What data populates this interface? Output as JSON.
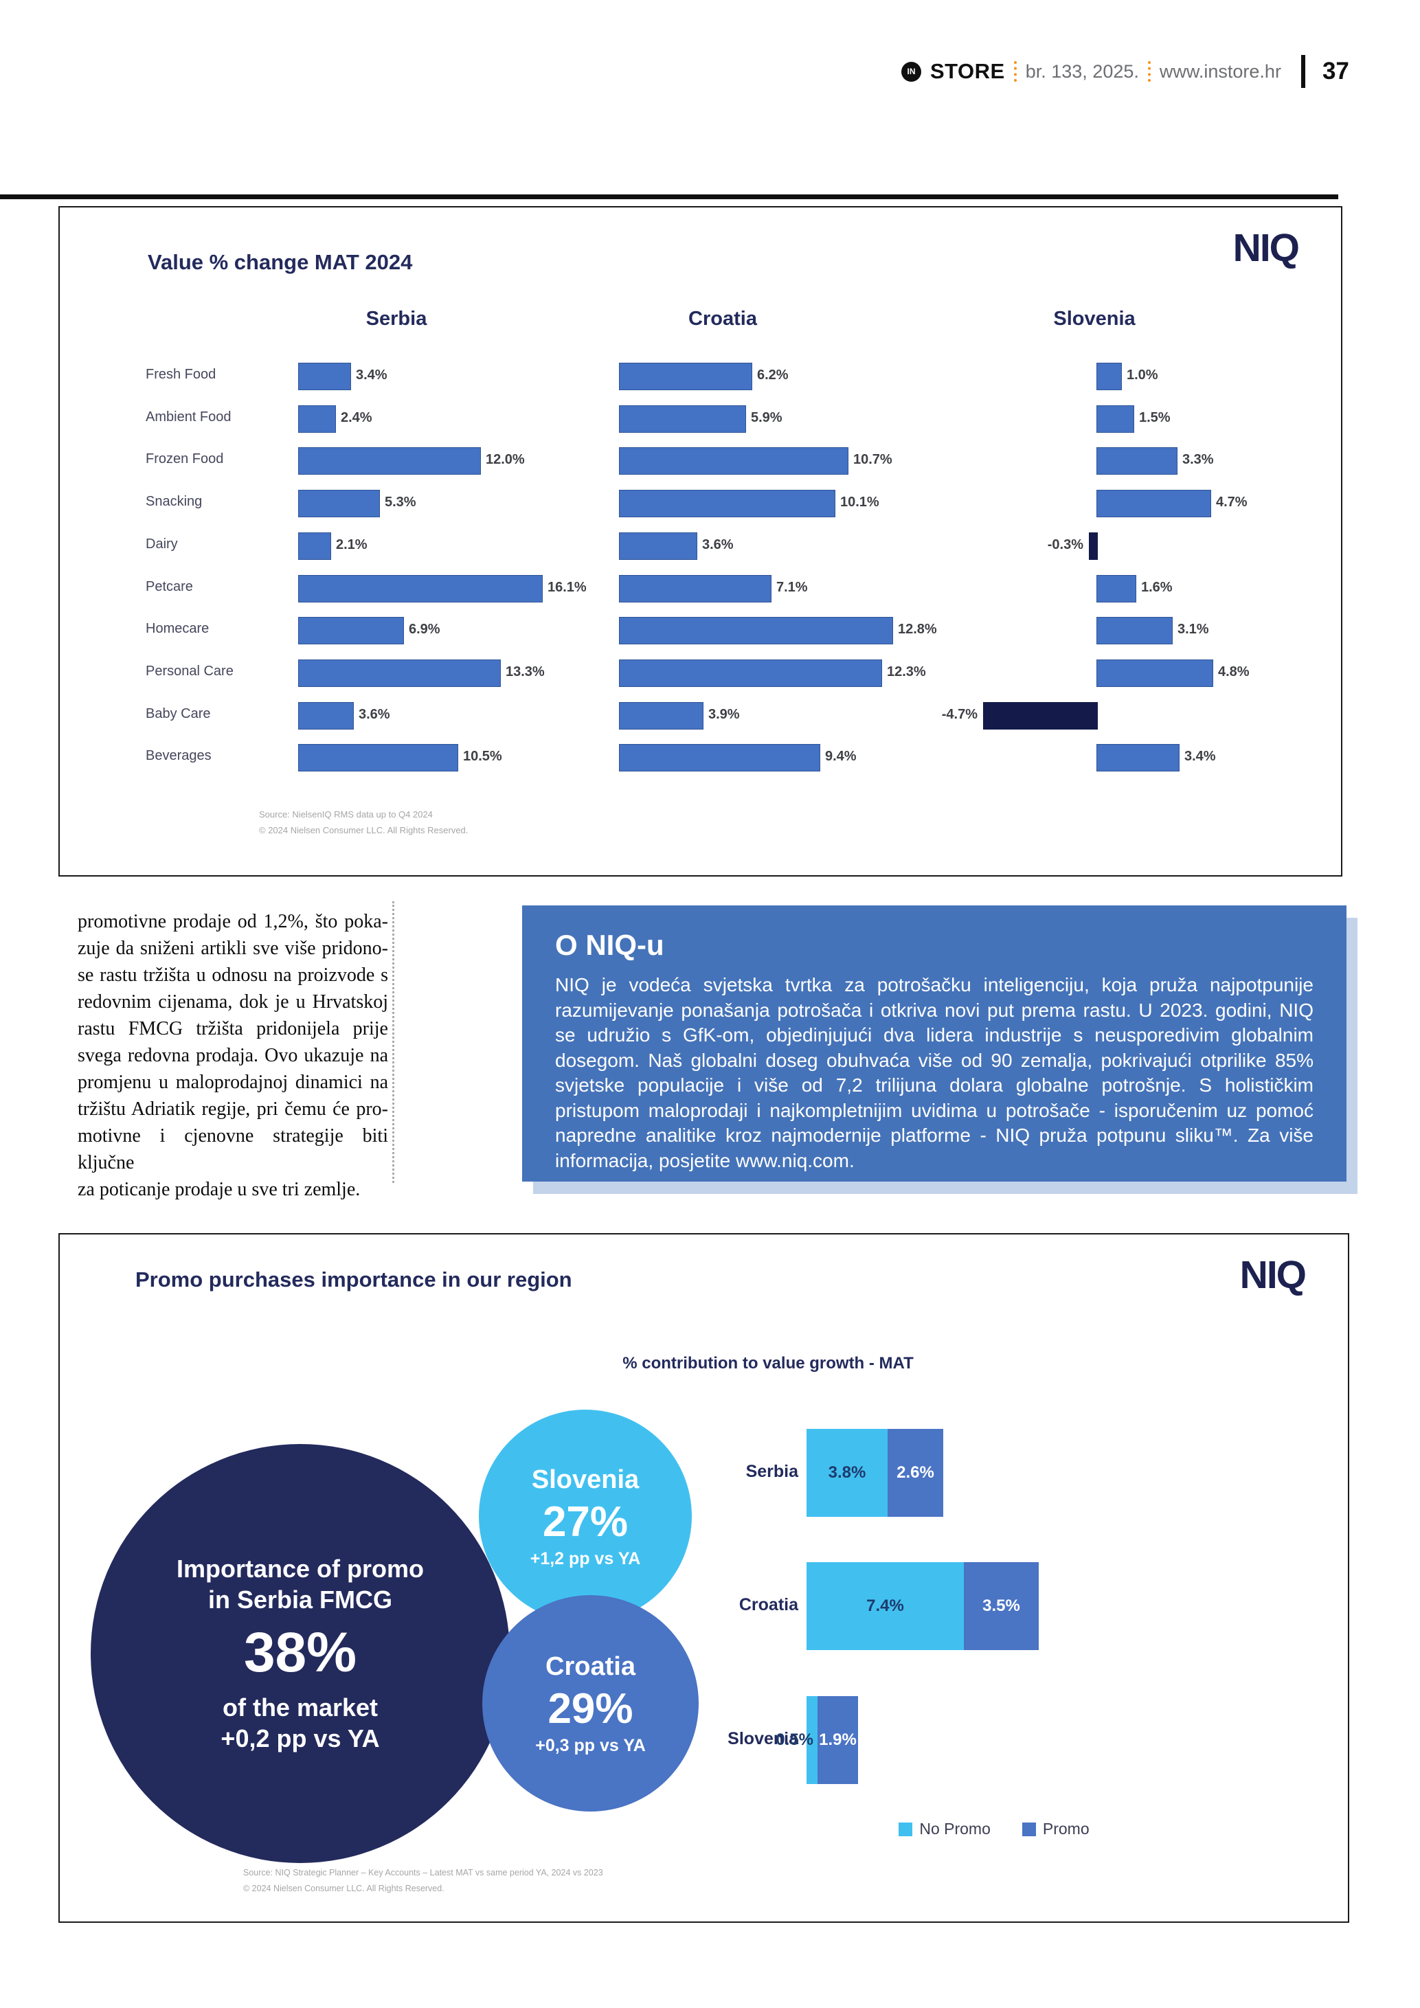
{
  "header": {
    "logo_mark": "IN",
    "brand": "STORE",
    "issue": "br. 133, 2025.",
    "website": "www.instore.hr",
    "page_number": "37"
  },
  "article": {
    "lines": [
      "promotivne prodaje od 1,2%, što poka-",
      "zuje da sniženi artikli sve više pridono-",
      "se rastu tržišta u odnosu na proizvode s",
      "redovnim cijenama, dok je u Hrvatskoj",
      "rastu FMCG tržišta pridonijela prije",
      "svega redovna prodaja. Ovo ukazuje na",
      "promjenu u maloprodajnoj dinamici na",
      "tržištu Adriatik regije, pri čemu će pro-",
      "motivne i cjenovne strategije biti ključne",
      "za poticanje prodaje u sve tri zemlje."
    ]
  },
  "niq_box": {
    "title": "O NIQ-u",
    "body": "NIQ je vodeća svjetska tvrtka za potrošačku inteligenciju, koja pruža najpotpunije razumijevanje ponašanja potrošača i otkriva novi put prema rastu. U 2023. godini, NIQ se udružio s GfK-om, objedinjujući dva lidera industrije s neusporedivim globalnim dosegom. Naš globalni doseg obuhvaća više od 90 zemalja, pokrivajući otprilike 85% svjetske populacije i više od 7,2 trilijuna dolara globalne potrošnje. S holističkim pristupom maloprodaji i najkompletnijim uvidima u potrošače - isporučenim uz pomoć napredne analitike kroz najmodernije platforme - NIQ pruža potpunu sliku™. Za više informacija, posjetite www.niq.com."
  },
  "chart1": {
    "title": "Value % change MAT 2024",
    "logo": "NIQ",
    "source1": "Source: NielsenIQ RMS data up to Q4 2024",
    "source2": "© 2024 Nielsen Consumer LLC. All Rights Reserved."
  },
  "chart2": {
    "title": "Promo purchases importance in our region",
    "logo": "NIQ",
    "bar_subtitle": "% contribution to value growth - MAT",
    "legend": [
      "No Promo",
      "Promo"
    ],
    "bubbles": [
      {
        "name": "serbia",
        "lines": [
          "Importance of promo",
          "in Serbia FMCG"
        ],
        "value": "38%",
        "sub1": "of the market",
        "sub2": "+0,2 pp vs YA"
      },
      {
        "name": "slovenia",
        "label": "Slovenia",
        "value": "27%",
        "sub": "+1,2 pp vs YA"
      },
      {
        "name": "croatia",
        "label": "Croatia",
        "value": "29%",
        "sub": "+0,3 pp vs YA"
      }
    ],
    "source1": "Source: NIQ Strategic Planner – Key Accounts – Latest MAT vs same period YA, 2024 vs 2023",
    "source2": "© 2024 Nielsen Consumer LLC. All Rights Reserved."
  },
  "chart_data": [
    {
      "type": "bar",
      "orientation": "horizontal",
      "title": "Value % change MAT 2024",
      "unit": "%",
      "categories": [
        "Fresh Food",
        "Ambient Food",
        "Frozen Food",
        "Snacking",
        "Dairy",
        "Petcare",
        "Homecare",
        "Personal Care",
        "Baby Care",
        "Beverages"
      ],
      "series": [
        {
          "name": "Serbia",
          "values": [
            3.4,
            2.4,
            12.0,
            5.3,
            2.1,
            16.1,
            6.9,
            13.3,
            3.6,
            10.5
          ]
        },
        {
          "name": "Croatia",
          "values": [
            6.2,
            5.9,
            10.7,
            10.1,
            3.6,
            7.1,
            12.8,
            12.3,
            3.9,
            9.4
          ]
        },
        {
          "name": "Slovenia",
          "values": [
            1.0,
            1.5,
            3.3,
            4.7,
            -0.3,
            1.6,
            3.1,
            4.8,
            -4.7,
            3.4
          ]
        }
      ],
      "layout": "three small multiples, one per country, shared category axis, data labels at bar ends, negative bars dark navy"
    },
    {
      "type": "bar",
      "orientation": "horizontal",
      "stacked": true,
      "title": "% contribution to value growth - MAT",
      "unit": "%",
      "categories": [
        "Serbia",
        "Croatia",
        "Slovenia"
      ],
      "series": [
        {
          "name": "No Promo",
          "values": [
            3.8,
            7.4,
            0.5
          ]
        },
        {
          "name": "Promo",
          "values": [
            2.6,
            3.5,
            1.9
          ]
        }
      ],
      "legend_position": "bottom",
      "kpi_bubbles": [
        {
          "label": "Importance of promo in Serbia FMCG",
          "value": 38,
          "note": "of the market +0,2 pp vs YA"
        },
        {
          "label": "Slovenia",
          "value": 27,
          "note": "+1,2 pp vs YA"
        },
        {
          "label": "Croatia",
          "value": 29,
          "note": "+0,3 pp vs YA"
        }
      ]
    }
  ],
  "colors": {
    "navy": "#232a5c",
    "niq-logo": "#1c2150",
    "bar-blue": "#4472c4",
    "bar-border": "#2f5597",
    "bar-negative": "#141b4a",
    "cyan": "#41c0f0",
    "promo-blue": "#4a74c4",
    "box-blue": "#4573b9",
    "box-shadow": "#c3d3ea",
    "accent-orange": "#f6921e",
    "header-gray": "#6d6e71",
    "source-gray": "#a6a6a6",
    "label-navy": "#1e3a6d"
  }
}
